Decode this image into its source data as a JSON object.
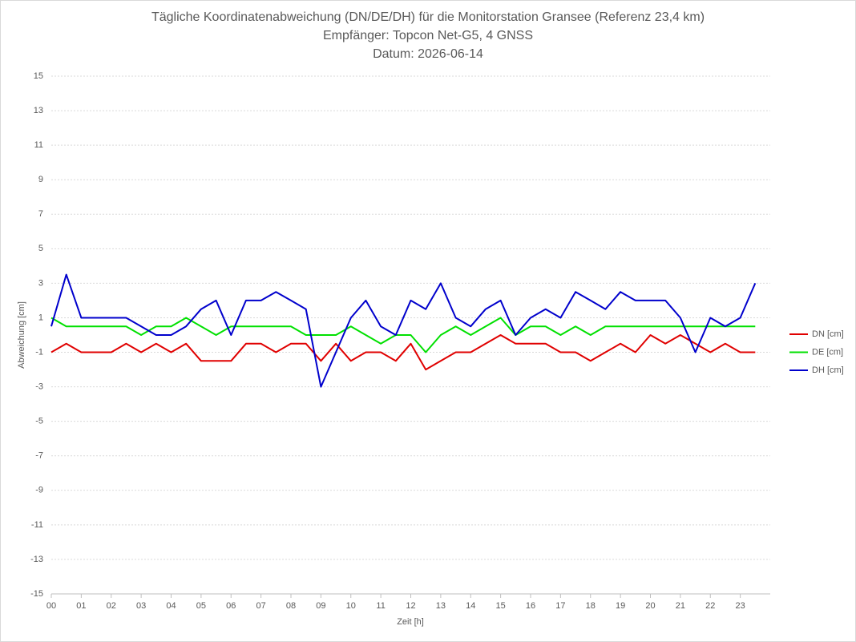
{
  "chart_data": {
    "type": "line",
    "title": "Tägliche Koordinatenabweichung (DN/DE/DH) für die Monitorstation Gransee (Referenz 23,4 km)",
    "subtitle": "Empfänger: Topcon Net-G5, 4 GNSS",
    "date": "Datum: 2026-06-14",
    "x_label": "Zeit [h]",
    "y_label": "Abweichung [cm]",
    "x": [
      0,
      0.5,
      1,
      1.5,
      2,
      2.5,
      3,
      3.5,
      4,
      4.5,
      5,
      5.5,
      6,
      6.5,
      7,
      7.5,
      8,
      8.5,
      9,
      9.5,
      10,
      10.5,
      11,
      11.5,
      12,
      12.5,
      13,
      13.5,
      14,
      14.5,
      15,
      15.5,
      16,
      16.5,
      17,
      17.5,
      18,
      18.5,
      19,
      19.5,
      20,
      20.5,
      21,
      21.5,
      22,
      22.5,
      23,
      23.5
    ],
    "series": [
      {
        "name": "DN [cm]",
        "color": "#e00000",
        "values": [
          -1,
          -0.5,
          -1,
          -1,
          -1,
          -0.5,
          -1,
          -0.5,
          -1,
          -0.5,
          -1.5,
          -1.5,
          -1.5,
          -0.5,
          -0.5,
          -1,
          -0.5,
          -0.5,
          -1.5,
          -0.5,
          -1.5,
          -1,
          -1,
          -1.5,
          -0.5,
          -2,
          -1.5,
          -1,
          -1,
          -0.5,
          0,
          -0.5,
          -0.5,
          -0.5,
          -1,
          -1,
          -1.5,
          -1,
          -0.5,
          -1,
          0,
          -0.5,
          0,
          -0.5,
          -1,
          -0.5,
          -1,
          -1
        ]
      },
      {
        "name": "DE [cm]",
        "color": "#00e000",
        "values": [
          1,
          0.5,
          0.5,
          0.5,
          0.5,
          0.5,
          0,
          0.5,
          0.5,
          1,
          0.5,
          0,
          0.5,
          0.5,
          0.5,
          0.5,
          0.5,
          0,
          0,
          0,
          0.5,
          0,
          -0.5,
          0,
          0,
          -1,
          0,
          0.5,
          0,
          0.5,
          1,
          0,
          0.5,
          0.5,
          0,
          0.5,
          0,
          0.5,
          0.5,
          0.5,
          0.5,
          0.5,
          0.5,
          0.5,
          0.5,
          0.5,
          0.5,
          0.5
        ]
      },
      {
        "name": "DH [cm]",
        "color": "#0000cc",
        "values": [
          0.5,
          3.5,
          1,
          1,
          1,
          1,
          0.5,
          0,
          0,
          0.5,
          1.5,
          2,
          0,
          2,
          2,
          2.5,
          2,
          1.5,
          -3,
          -1,
          1,
          2,
          0.5,
          0,
          2,
          1.5,
          3,
          1,
          0.5,
          1.5,
          2,
          0,
          1,
          1.5,
          1,
          2.5,
          2,
          1.5,
          2.5,
          2,
          2,
          2,
          1,
          -1,
          1,
          0.5,
          1,
          3
        ]
      }
    ],
    "xlim": [
      0,
      24
    ],
    "xticks": [
      {
        "value": 0,
        "label": "00"
      },
      {
        "value": 1,
        "label": "01"
      },
      {
        "value": 2,
        "label": "02"
      },
      {
        "value": 3,
        "label": "03"
      },
      {
        "value": 4,
        "label": "04"
      },
      {
        "value": 5,
        "label": "05"
      },
      {
        "value": 6,
        "label": "06"
      },
      {
        "value": 7,
        "label": "07"
      },
      {
        "value": 8,
        "label": "08"
      },
      {
        "value": 9,
        "label": "09"
      },
      10,
      11,
      12,
      13,
      14,
      15,
      16,
      17,
      18,
      19,
      20,
      21,
      22,
      23
    ],
    "ylim": [
      -15,
      15
    ],
    "yticks": [
      -15,
      -13,
      -11,
      -9,
      -7,
      -5,
      -3,
      -1,
      1,
      3,
      5,
      7,
      9,
      11,
      13,
      15
    ],
    "grid": true,
    "legend": "right"
  }
}
